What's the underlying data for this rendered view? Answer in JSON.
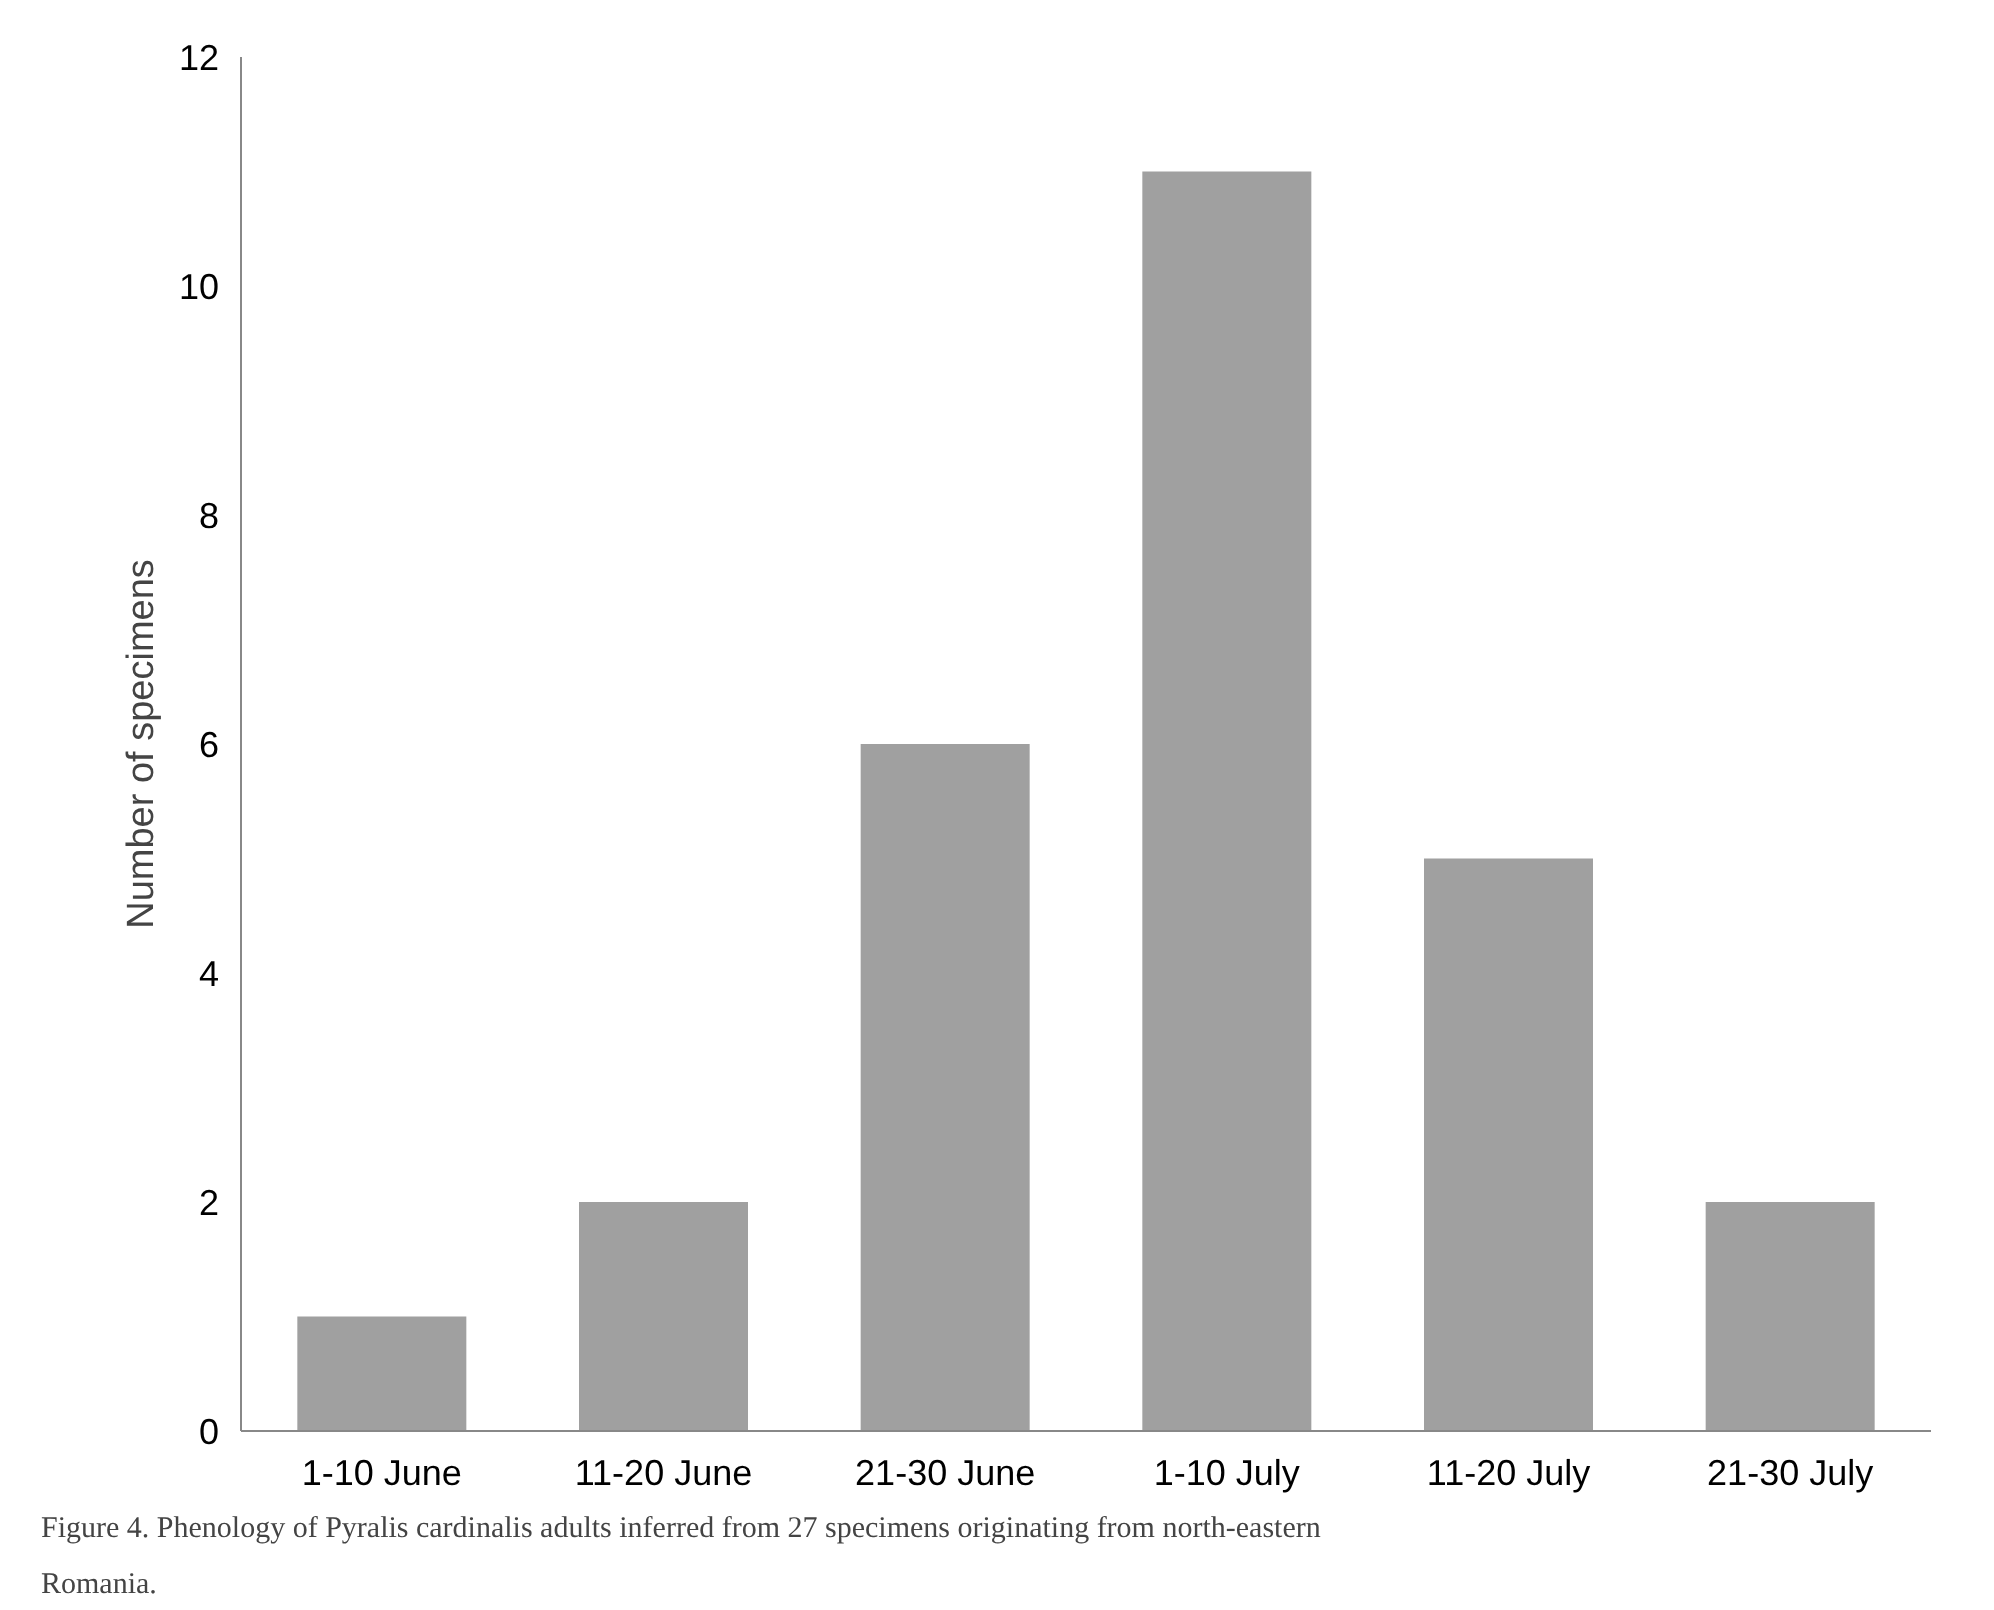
{
  "chart_data": {
    "type": "bar",
    "ylabel": "Number of specimens",
    "categories": [
      "1-10 June",
      "11-20 June",
      "21-30 June",
      "1-10 July",
      "11-20 July",
      "21-30 July"
    ],
    "values": [
      1,
      2,
      6,
      11,
      5,
      2
    ],
    "color": "#a0a0a0",
    "ylim": [
      0,
      12
    ],
    "yticks": [
      0,
      2,
      4,
      6,
      8,
      10,
      12
    ],
    "grid": false,
    "annotations": [
      "Figure 4. Phenology of Pyralis cardinalis adults inferred from 27 specimens originating from north-eastern Romania."
    ]
  }
}
